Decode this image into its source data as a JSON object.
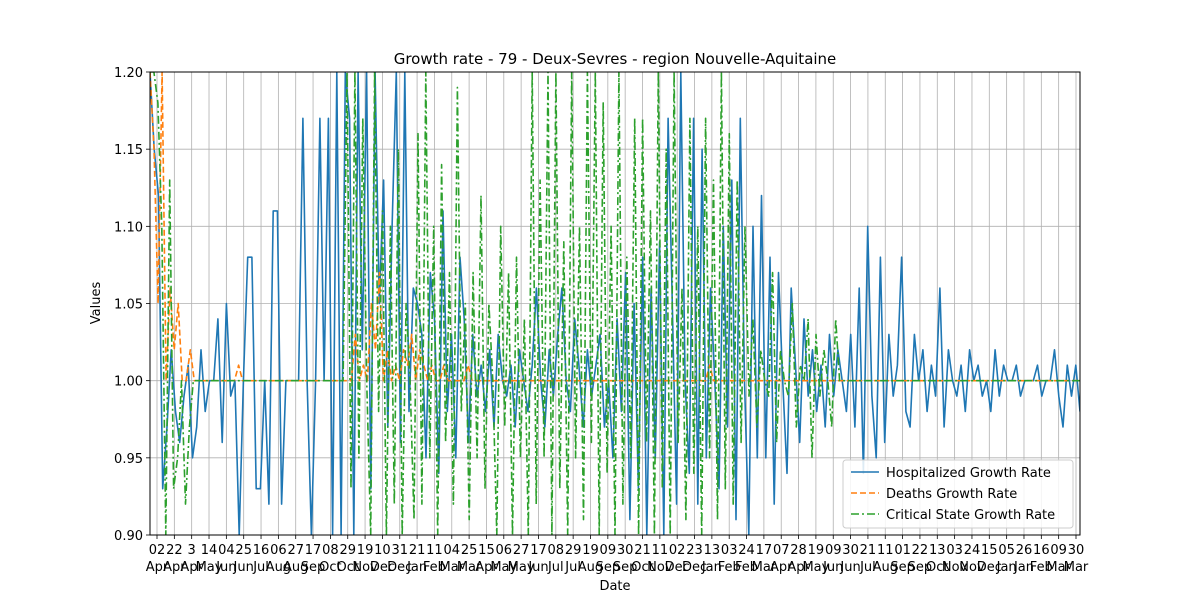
{
  "chart_data": {
    "type": "line",
    "title": "Growth rate - 79 - Deux-Sevres - region Nouvelle-Aquitaine",
    "xlabel": "Date",
    "ylabel": "Values",
    "ylim": [
      0.9,
      1.2
    ],
    "y_ticks": [
      "0.90",
      "0.95",
      "1.00",
      "1.05",
      "1.10",
      "1.15",
      "1.20"
    ],
    "grid": true,
    "legend_position": "lower right",
    "x_ticks": [
      {
        "day": "02",
        "month": "Apr"
      },
      {
        "day": "22",
        "month": "Apr"
      },
      {
        "day": "3",
        "month": "Apr"
      },
      {
        "day": "14",
        "month": "May"
      },
      {
        "day": "04",
        "month": "Jun"
      },
      {
        "day": "25",
        "month": "Jun"
      },
      {
        "day": "16",
        "month": "Jul"
      },
      {
        "day": "06",
        "month": "Aug"
      },
      {
        "day": "27",
        "month": "Aug"
      },
      {
        "day": "17",
        "month": "Sep"
      },
      {
        "day": "08",
        "month": "Oct"
      },
      {
        "day": "29",
        "month": "Oct"
      },
      {
        "day": "19",
        "month": "Nov"
      },
      {
        "day": "10",
        "month": "Dec"
      },
      {
        "day": "31",
        "month": "Dec"
      },
      {
        "day": "21",
        "month": "Jan"
      },
      {
        "day": "11",
        "month": "Feb"
      },
      {
        "day": "04",
        "month": "Mar"
      },
      {
        "day": "25",
        "month": "Mar"
      },
      {
        "day": "15",
        "month": "Apr"
      },
      {
        "day": "06",
        "month": "May"
      },
      {
        "day": "27",
        "month": "May"
      },
      {
        "day": "17",
        "month": "Jun"
      },
      {
        "day": "08",
        "month": "Jul"
      },
      {
        "day": "29",
        "month": "Jul"
      },
      {
        "day": "19",
        "month": "Aug"
      },
      {
        "day": "09",
        "month": "Sep"
      },
      {
        "day": "30",
        "month": "Sep"
      },
      {
        "day": "21",
        "month": "Oct"
      },
      {
        "day": "11",
        "month": "Nov"
      },
      {
        "day": "02",
        "month": "Dec"
      },
      {
        "day": "23",
        "month": "Dec"
      },
      {
        "day": "13",
        "month": "Jan"
      },
      {
        "day": "03",
        "month": "Feb"
      },
      {
        "day": "24",
        "month": "Feb"
      },
      {
        "day": "17",
        "month": "Mar"
      },
      {
        "day": "07",
        "month": "Apr"
      },
      {
        "day": "28",
        "month": "Apr"
      },
      {
        "day": "19",
        "month": "May"
      },
      {
        "day": "09",
        "month": "Jun"
      },
      {
        "day": "30",
        "month": "Jun"
      },
      {
        "day": "21",
        "month": "Jul"
      },
      {
        "day": "11",
        "month": "Aug"
      },
      {
        "day": "01",
        "month": "Sep"
      },
      {
        "day": "22",
        "month": "Sep"
      },
      {
        "day": "13",
        "month": "Oct"
      },
      {
        "day": "03",
        "month": "Nov"
      },
      {
        "day": "24",
        "month": "Nov"
      },
      {
        "day": "15",
        "month": "Dec"
      },
      {
        "day": "05",
        "month": "Jan"
      },
      {
        "day": "26",
        "month": "Jan"
      },
      {
        "day": "16",
        "month": "Feb"
      },
      {
        "day": "09",
        "month": "Mar"
      },
      {
        "day": "30",
        "month": "Mar"
      }
    ],
    "series": [
      {
        "name": "Hospitalized Growth Rate",
        "color": "#1f77b4",
        "style": "solid",
        "values": [
          1.2,
          1.15,
          1.12,
          0.93,
          0.97,
          1.02,
          0.98,
          0.96,
          0.99,
          1.01,
          0.95,
          0.97,
          1.02,
          0.98,
          1.0,
          1.0,
          1.04,
          0.96,
          1.05,
          0.99,
          1.0,
          0.9,
          1.0,
          1.08,
          1.08,
          0.93,
          0.93,
          1.0,
          0.92,
          1.11,
          1.11,
          0.92,
          1.0,
          1.0,
          1.0,
          1.0,
          1.17,
          1.0,
          0.9,
          1.0,
          1.17,
          1.0,
          1.17,
          0.9,
          1.2,
          0.9,
          1.2,
          1.17,
          0.9,
          1.2,
          1.02,
          1.2,
          0.93,
          1.2,
          1.05,
          1.13,
          0.97,
          1.1,
          1.2,
          0.96,
          1.2,
          0.98,
          1.06,
          1.05,
          1.03,
          0.95,
          1.07,
          1.04,
          0.94,
          1.11,
          0.98,
          1.03,
          0.95,
          1.08,
          1.04,
          0.96,
          1.03,
          0.99,
          1.01,
          0.98,
          1.02,
          0.97,
          1.03,
          1.0,
          0.99,
          1.01,
          0.97,
          1.02,
          1.0,
          0.98,
          1.01,
          1.06,
          1.0,
          0.97,
          1.02,
          0.99,
          1.03,
          1.06,
          1.0,
          0.98,
          1.04,
          1.01,
          0.97,
          1.02,
          0.99,
          1.01,
          1.03,
          0.97,
          1.0,
          0.95,
          1.04,
          0.98,
          1.07,
          0.91,
          1.05,
          0.93,
          1.08,
          0.9,
          1.06,
          0.95,
          1.09,
          0.9,
          1.17,
          1.05,
          0.92,
          1.2,
          1.0,
          0.94,
          1.17,
          0.92,
          1.15,
          0.95,
          1.06,
          1.0,
          0.93,
          1.1,
          0.97,
          1.13,
          0.91,
          1.17,
          1.0,
          0.9,
          1.1,
          0.95,
          1.12,
          0.95,
          1.08,
          0.92,
          1.07,
          1.0,
          0.94,
          1.06,
          1.01,
          0.96,
          1.04,
          0.99,
          1.02,
          0.98,
          1.01,
          0.97,
          1.03,
          0.99,
          1.02,
          1.0,
          0.98,
          1.03,
          0.97,
          1.06,
          0.94,
          1.1,
          0.99,
          0.95,
          1.08,
          0.96,
          1.03,
          0.99,
          1.01,
          1.08,
          0.98,
          0.97,
          1.03,
          1.0,
          1.02,
          0.98,
          1.01,
          0.99,
          1.06,
          0.97,
          1.02,
          1.0,
          0.99,
          1.01,
          0.98,
          1.02,
          1.0,
          1.01,
          0.99,
          1.0,
          0.98,
          1.02,
          0.99,
          1.01,
          1.0,
          1.0,
          1.01,
          0.99,
          1.0,
          1.0,
          1.0,
          1.01,
          0.99,
          1.0,
          1.0,
          1.02,
          0.99,
          0.97,
          1.01,
          0.99,
          1.01,
          0.98
        ]
      },
      {
        "name": "Deaths Growth Rate",
        "color": "#ff7f0e",
        "style": "dashed",
        "values": [
          1.2,
          1.15,
          1.05,
          1.2,
          1.0,
          1.06,
          1.02,
          1.05,
          1.0,
          1.0,
          1.02,
          1.0,
          1.0,
          1.0,
          1.0,
          1.0,
          1.0,
          1.0,
          1.0,
          1.0,
          1.0,
          1.0,
          1.01,
          1.0,
          1.0,
          1.0,
          1.0,
          1.0,
          1.0,
          1.0,
          1.0,
          1.0,
          1.0,
          1.0,
          1.0,
          1.0,
          1.0,
          1.0,
          1.0,
          1.0,
          1.0,
          1.0,
          1.0,
          1.0,
          1.0,
          1.0,
          1.0,
          1.0,
          1.0,
          1.0,
          1.0,
          1.03,
          1.0,
          1.01,
          1.0,
          1.05,
          1.02,
          1.07,
          1.0,
          1.02,
          1.0,
          1.01,
          1.0,
          1.02,
          1.01,
          1.03,
          1.0,
          1.02,
          1.01,
          1.0,
          1.01,
          1.0,
          1.0,
          1.01,
          1.0,
          1.0,
          1.0,
          1.0,
          1.0,
          1.01,
          1.0,
          1.0,
          1.0,
          1.0,
          1.0,
          1.0,
          1.0,
          1.0,
          1.0,
          1.0,
          1.0,
          1.0,
          1.0,
          1.0,
          1.0,
          1.0,
          1.0,
          1.0,
          1.0,
          1.0,
          1.0,
          1.0,
          1.0,
          1.0,
          1.0,
          1.0,
          1.0,
          1.0,
          1.0,
          1.0,
          1.0,
          1.0,
          1.0,
          1.0,
          1.0,
          1.0,
          1.0,
          1.0,
          1.0,
          1.0,
          1.0,
          1.0,
          1.0,
          1.0,
          1.0,
          1.0,
          1.0,
          1.0,
          1.0,
          1.0,
          1.0,
          1.0,
          1.0,
          1.0,
          1.0,
          1.0,
          1.0,
          1.0,
          1.0,
          1.01,
          1.0,
          1.0,
          1.0,
          1.0,
          1.0,
          1.0,
          1.0,
          1.0,
          1.0,
          1.0,
          1.0,
          1.0,
          1.0,
          1.0,
          1.0,
          1.0,
          1.0,
          1.0,
          1.0,
          1.0,
          1.0,
          1.0,
          1.0,
          1.0,
          1.0,
          1.0,
          1.0,
          1.0,
          1.0,
          1.0,
          1.0,
          1.0,
          1.0,
          1.0,
          1.0,
          1.0,
          1.0,
          1.0,
          1.0,
          1.0,
          1.0,
          1.0,
          1.0,
          1.0,
          1.0,
          1.0,
          1.0,
          1.0,
          1.0,
          1.0,
          1.0,
          1.0,
          1.0,
          1.0,
          1.0,
          1.0,
          1.0,
          1.0,
          1.0,
          1.0,
          1.0,
          1.0,
          1.0,
          1.0,
          1.0,
          1.0,
          1.0,
          1.0,
          1.0,
          1.0,
          1.0,
          1.0,
          1.0,
          1.0,
          1.0,
          1.0,
          1.0,
          1.0,
          1.0,
          1.0,
          1.0,
          1.0,
          1.0,
          1.0,
          1.0,
          1.0,
          1.0,
          1.0,
          1.0,
          1.0,
          1.0,
          1.0
        ]
      },
      {
        "name": "Critical State Growth Rate",
        "color": "#2ca02c",
        "style": "dashdot",
        "values": [
          1.2,
          1.2,
          1.18,
          1.1,
          0.9,
          1.13,
          0.93,
          0.95,
          1.0,
          0.92,
          0.97,
          1.0,
          1.0,
          1.0,
          1.0,
          1.0,
          1.0,
          1.0,
          1.0,
          1.0,
          1.0,
          1.0,
          1.0,
          1.0,
          1.0,
          1.0,
          1.0,
          1.0,
          1.0,
          1.0,
          1.0,
          1.0,
          1.0,
          1.0,
          1.0,
          1.0,
          1.0,
          1.0,
          1.0,
          1.0,
          1.0,
          1.0,
          1.0,
          1.0,
          1.0,
          1.0,
          1.0,
          1.0,
          1.0,
          1.0,
          1.2,
          0.93,
          1.2,
          0.95,
          1.17,
          1.0,
          0.9,
          1.2,
          0.98,
          1.11,
          0.9,
          1.1,
          0.92,
          1.15,
          0.9,
          1.05,
          1.0,
          0.91,
          1.16,
          0.92,
          1.2,
          0.95,
          1.1,
          0.9,
          1.14,
          0.96,
          1.07,
          0.92,
          1.19,
          0.98,
          1.05,
          0.91,
          1.07,
          0.95,
          1.12,
          0.93,
          1.05,
          1.0,
          0.9,
          1.1,
          0.97,
          1.07,
          0.9,
          1.08,
          0.95,
          1.04,
          0.9,
          1.2,
          0.92,
          1.13,
          0.95,
          1.2,
          0.9,
          1.2,
          0.93,
          1.09,
          0.9,
          1.2,
          0.95,
          1.1,
          0.91,
          1.2,
          0.96,
          1.2,
          0.9,
          1.18,
          0.94,
          1.1,
          0.9,
          1.2,
          0.92,
          1.08,
          0.95,
          1.17,
          0.9,
          1.17,
          0.96,
          1.11,
          0.9,
          1.2,
          0.93,
          1.15,
          0.9,
          1.2,
          0.96,
          1.06,
          0.91,
          1.17,
          0.94,
          1.1,
          0.9,
          1.17,
          0.95,
          1.13,
          0.91,
          1.2,
          0.93,
          1.16,
          0.92,
          1.13,
          0.96,
          1.1,
          0.99,
          1.04,
          0.97,
          1.02,
          1.0,
          0.99,
          1.07,
          0.96,
          1.02,
          1.0,
          0.99,
          1.05,
          0.97,
          1.01,
          1.0,
          1.04,
          0.95,
          1.03,
          0.99,
          1.02,
          1.0,
          0.97,
          1.04,
          1.0,
          1.0,
          1.0,
          1.0,
          1.0,
          1.0,
          1.0,
          1.0,
          1.0,
          1.0,
          1.0,
          1.0,
          1.0,
          1.0,
          1.0,
          1.0,
          1.0,
          1.0,
          1.0,
          1.0,
          1.0,
          1.0,
          1.0,
          1.0,
          1.0,
          1.0,
          1.0,
          1.0,
          1.0,
          1.0,
          1.0,
          1.0,
          1.0,
          1.0,
          1.0,
          1.0,
          1.0,
          1.0,
          1.0,
          1.0,
          1.0,
          1.0,
          1.0,
          1.0,
          1.0,
          1.0,
          1.0,
          1.0,
          1.0,
          1.0,
          1.0,
          1.0,
          1.0,
          1.0,
          1.0,
          1.0,
          1.0,
          1.0,
          1.0,
          1.0,
          1.0,
          1.0
        ]
      }
    ]
  }
}
